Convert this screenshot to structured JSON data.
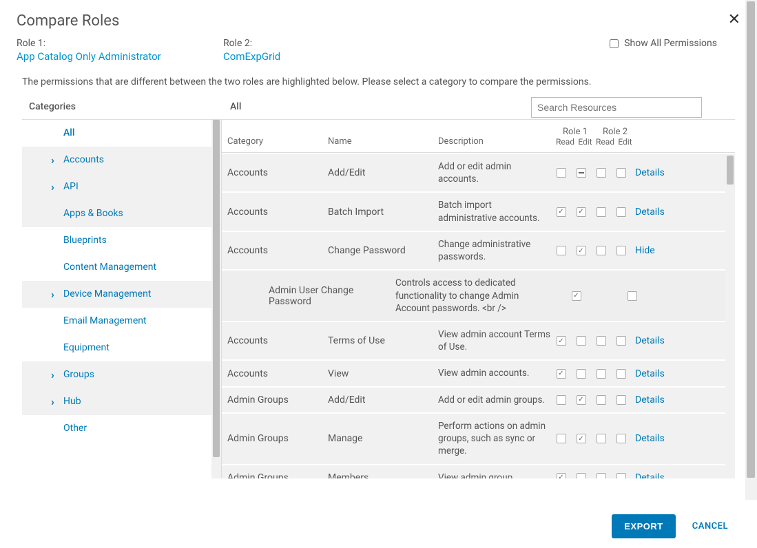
{
  "title": "Compare Roles",
  "role1_label": "Role 1:",
  "role1_name": "App Catalog Only Administrator",
  "role2_label": "Role 2:",
  "role2_name": "ComExpGrid",
  "show_all_label": "Show All Permissions",
  "description": "The permissions that are different between the two roles are highlighted below. Please select a category to compare the permissions.",
  "toolbar": {
    "categories": "Categories",
    "all": "All",
    "search_placeholder": "Search Resources"
  },
  "categories": [
    {
      "label": "All",
      "type": "all"
    },
    {
      "label": "Accounts",
      "type": "expandable",
      "shaded": true
    },
    {
      "label": "API",
      "type": "expandable",
      "shaded": true
    },
    {
      "label": "Apps & Books",
      "type": "sub",
      "shaded": true
    },
    {
      "label": "Blueprints",
      "type": "sub"
    },
    {
      "label": "Content Management",
      "type": "sub"
    },
    {
      "label": "Device Management",
      "type": "expandable",
      "shaded": true
    },
    {
      "label": "Email Management",
      "type": "sub"
    },
    {
      "label": "Equipment",
      "type": "sub"
    },
    {
      "label": "Groups",
      "type": "expandable",
      "shaded": true
    },
    {
      "label": "Hub",
      "type": "expandable",
      "shaded": true
    },
    {
      "label": "Other",
      "type": "sub"
    }
  ],
  "table": {
    "headers": {
      "category": "Category",
      "name": "Name",
      "description": "Description",
      "role1": "Role 1",
      "role2": "Role 2",
      "read": "Read",
      "edit": "Edit"
    },
    "rows": [
      {
        "category": "Accounts",
        "name": "Add/Edit",
        "desc": "Add or edit admin accounts.",
        "r1r": "",
        "r1e": "indet",
        "r2r": "",
        "r2e": "",
        "action": "Details"
      },
      {
        "category": "Accounts",
        "name": "Batch Import",
        "desc": "Batch import administrative accounts.",
        "r1r": "checked",
        "r1e": "checked",
        "r2r": "",
        "r2e": "",
        "action": "Details"
      },
      {
        "category": "Accounts",
        "name": "Change Password",
        "desc": "Change administrative passwords.",
        "r1r": "",
        "r1e": "checked",
        "r2r": "",
        "r2e": "",
        "action": "Hide"
      },
      {
        "sub": true,
        "category": "Admin User Change Password",
        "desc": "Controls access to dedicated functionality to change Admin Account passwords. <br />",
        "c1": "checked",
        "c2": ""
      },
      {
        "category": "Accounts",
        "name": "Terms of Use",
        "desc": "View admin account Terms of Use.",
        "r1r": "checked",
        "r1e": "",
        "r2r": "",
        "r2e": "",
        "action": "Details"
      },
      {
        "category": "Accounts",
        "name": "View",
        "desc": "View admin accounts.",
        "r1r": "checked",
        "r1e": "",
        "r2r": "",
        "r2e": "",
        "action": "Details"
      },
      {
        "category": "Admin Groups",
        "name": "Add/Edit",
        "desc": "Add or edit admin groups.",
        "r1r": "",
        "r1e": "checked",
        "r2r": "",
        "r2e": "",
        "action": "Details"
      },
      {
        "category": "Admin Groups",
        "name": "Manage",
        "desc": "Perform actions on admin groups, such as sync or merge.",
        "r1r": "",
        "r1e": "checked",
        "r2r": "",
        "r2e": "",
        "action": "Details"
      },
      {
        "category": "Admin Groups",
        "name": "Members",
        "desc": "View admin group",
        "r1r": "checked",
        "r1e": "",
        "r2r": "",
        "r2e": "",
        "action": "Details"
      }
    ]
  },
  "footer": {
    "export": "EXPORT",
    "cancel": "CANCEL"
  }
}
